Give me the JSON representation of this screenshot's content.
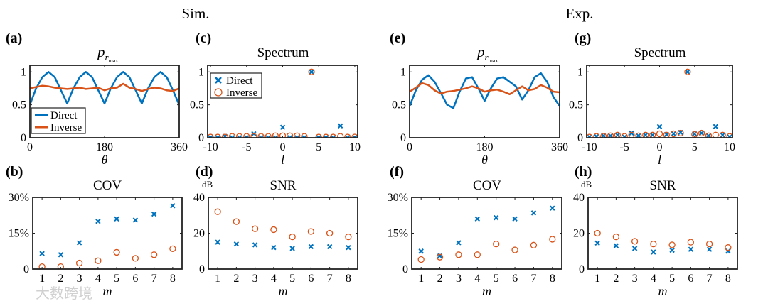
{
  "headers": {
    "sim": "Sim.",
    "exp": "Exp."
  },
  "watermark": "大数跨境",
  "colors": {
    "direct": "#0072BD",
    "inverse": "#D95319"
  },
  "chart_data": [
    {
      "id": "a",
      "type": "line",
      "panel_label": "(a)",
      "title": {
        "main": "p",
        "sub": "r",
        "subsub": "max"
      },
      "xlabel": "θ",
      "ylabel": "",
      "xlim": [
        0,
        360
      ],
      "ylim": [
        0,
        1.1
      ],
      "xticks": [
        0,
        180,
        360
      ],
      "xtick_labels": [
        "0",
        "180",
        "360"
      ],
      "yticks": [
        0,
        0.5,
        1
      ],
      "ytick_labels": [
        "0",
        "0.5",
        "1"
      ],
      "legend": {
        "placement": "bottom-left",
        "entries": [
          "Direct",
          "Inverse"
        ]
      },
      "x": [
        0,
        15,
        30,
        45,
        60,
        75,
        90,
        105,
        120,
        135,
        150,
        165,
        180,
        195,
        210,
        225,
        240,
        255,
        270,
        285,
        300,
        315,
        330,
        345,
        360
      ],
      "series": [
        {
          "name": "Direct",
          "values": [
            0.5,
            0.75,
            0.92,
            1.0,
            0.92,
            0.72,
            0.52,
            0.75,
            0.92,
            1.0,
            0.92,
            0.72,
            0.52,
            0.75,
            0.92,
            1.0,
            0.92,
            0.72,
            0.52,
            0.75,
            0.92,
            1.0,
            0.92,
            0.72,
            0.5
          ]
        },
        {
          "name": "Inverse",
          "values": [
            0.75,
            0.77,
            0.79,
            0.78,
            0.76,
            0.75,
            0.74,
            0.75,
            0.76,
            0.74,
            0.75,
            0.76,
            0.72,
            0.75,
            0.76,
            0.82,
            0.76,
            0.74,
            0.71,
            0.74,
            0.76,
            0.75,
            0.72,
            0.71,
            0.75
          ]
        }
      ]
    },
    {
      "id": "c",
      "type": "scatter",
      "panel_label": "(c)",
      "title": "Spectrum",
      "xlabel": "l",
      "ylabel": "",
      "xlim": [
        -10.4,
        10.4
      ],
      "ylim": [
        0,
        1.1
      ],
      "xticks": [
        -10,
        -5,
        0,
        5,
        10
      ],
      "xtick_labels": [
        "-10",
        "-5",
        "0",
        "5",
        "10"
      ],
      "yticks": [
        0,
        0.5,
        1
      ],
      "ytick_labels": [
        "0",
        "0.5",
        "1"
      ],
      "legend": {
        "placement": "top-left",
        "entries": [
          "Direct",
          "Inverse"
        ]
      },
      "x": [
        -10,
        -9,
        -8,
        -7,
        -6,
        -5,
        -4,
        -3,
        -2,
        -1,
        0,
        1,
        2,
        3,
        4,
        5,
        6,
        7,
        8,
        9,
        10
      ],
      "series": [
        {
          "name": "Direct",
          "marker": "x",
          "values": [
            0,
            0,
            0.02,
            0,
            0,
            0,
            0.06,
            0,
            0,
            0,
            0.16,
            0,
            0,
            0,
            1.0,
            0,
            0,
            0,
            0.18,
            0,
            0
          ]
        },
        {
          "name": "Inverse",
          "marker": "o",
          "values": [
            0.01,
            0.01,
            0.01,
            0.02,
            0.02,
            0.02,
            0.02,
            0.02,
            0.02,
            0.03,
            0.03,
            0.03,
            0.03,
            0.02,
            1.0,
            0.01,
            0.01,
            0.01,
            0.02,
            0.01,
            0.01
          ]
        }
      ]
    },
    {
      "id": "b",
      "type": "scatter",
      "panel_label": "(b)",
      "title": "COV",
      "xlabel": "m",
      "ylabel": "",
      "xlim": [
        0.5,
        8.5
      ],
      "ylim": [
        0,
        30
      ],
      "xticks": [
        1,
        2,
        3,
        4,
        5,
        6,
        7,
        8
      ],
      "xtick_labels": [
        "1",
        "2",
        "3",
        "4",
        "5",
        "6",
        "7",
        "8"
      ],
      "yticks": [
        0,
        15,
        30
      ],
      "ytick_labels": [
        "0",
        "15%",
        "30%"
      ],
      "x": [
        1,
        2,
        3,
        4,
        5,
        6,
        7,
        8
      ],
      "series": [
        {
          "name": "Direct",
          "marker": "x",
          "values": [
            6.5,
            6,
            11,
            20,
            21,
            20.5,
            23,
            26.5
          ]
        },
        {
          "name": "Inverse",
          "marker": "o",
          "values": [
            1,
            1,
            2.5,
            3.5,
            7,
            4.5,
            6,
            8.5
          ]
        }
      ]
    },
    {
      "id": "d",
      "type": "scatter",
      "panel_label": "(d)",
      "title": "SNR",
      "unit": "dB",
      "xlabel": "m",
      "ylabel": "dB",
      "xlim": [
        0.5,
        8.5
      ],
      "ylim": [
        0,
        40
      ],
      "xticks": [
        1,
        2,
        3,
        4,
        5,
        6,
        7,
        8
      ],
      "xtick_labels": [
        "1",
        "2",
        "3",
        "4",
        "5",
        "6",
        "7",
        "8"
      ],
      "yticks": [
        0,
        20,
        40
      ],
      "ytick_labels": [
        "0",
        "20",
        "40"
      ],
      "x": [
        1,
        2,
        3,
        4,
        5,
        6,
        7,
        8
      ],
      "series": [
        {
          "name": "Direct",
          "marker": "x",
          "values": [
            15,
            14,
            13.5,
            12,
            11.5,
            12.5,
            12.5,
            12
          ]
        },
        {
          "name": "Inverse",
          "marker": "o",
          "values": [
            32,
            26.5,
            22.5,
            22,
            18,
            21,
            20,
            18
          ]
        }
      ]
    },
    {
      "id": "e",
      "type": "line",
      "panel_label": "(e)",
      "title": {
        "main": "p",
        "sub": "r",
        "subsub": "max"
      },
      "xlabel": "θ",
      "ylabel": "",
      "xlim": [
        0,
        360
      ],
      "ylim": [
        0,
        1.1
      ],
      "xticks": [
        0,
        180,
        360
      ],
      "xtick_labels": [
        "0",
        "180",
        "360"
      ],
      "yticks": [
        0,
        0.5,
        1
      ],
      "ytick_labels": [
        "0",
        "0.5",
        "1"
      ],
      "x": [
        0,
        15,
        30,
        45,
        60,
        75,
        90,
        105,
        120,
        135,
        150,
        165,
        180,
        195,
        210,
        225,
        240,
        255,
        270,
        285,
        300,
        315,
        330,
        345,
        360
      ],
      "series": [
        {
          "name": "Direct",
          "values": [
            0.48,
            0.72,
            0.88,
            0.95,
            0.85,
            0.68,
            0.5,
            0.45,
            0.7,
            0.9,
            0.92,
            0.75,
            0.56,
            0.75,
            0.9,
            0.92,
            0.85,
            0.78,
            0.58,
            0.72,
            0.92,
            0.98,
            0.85,
            0.62,
            0.48
          ]
        },
        {
          "name": "Inverse",
          "values": [
            0.7,
            0.76,
            0.83,
            0.8,
            0.72,
            0.67,
            0.7,
            0.71,
            0.73,
            0.75,
            0.78,
            0.75,
            0.7,
            0.72,
            0.73,
            0.7,
            0.66,
            0.72,
            0.78,
            0.72,
            0.74,
            0.8,
            0.76,
            0.7,
            0.69
          ]
        }
      ]
    },
    {
      "id": "g",
      "type": "scatter",
      "panel_label": "(g)",
      "title": "Spectrum",
      "xlabel": "l",
      "ylabel": "",
      "xlim": [
        -10.4,
        10.4
      ],
      "ylim": [
        0,
        1.1
      ],
      "xticks": [
        -10,
        -5,
        0,
        5,
        10
      ],
      "xtick_labels": [
        "-10",
        "-5",
        "0",
        "5",
        "10"
      ],
      "yticks": [
        0,
        0.5,
        1
      ],
      "ytick_labels": [
        "0",
        "0.5",
        "1"
      ],
      "x": [
        -10,
        -9,
        -8,
        -7,
        -6,
        -5,
        -4,
        -3,
        -2,
        -1,
        0,
        1,
        2,
        3,
        4,
        5,
        6,
        7,
        8,
        9,
        10
      ],
      "series": [
        {
          "name": "Direct",
          "marker": "x",
          "values": [
            0.01,
            0.02,
            0.03,
            0.03,
            0.04,
            0.01,
            0.07,
            0.03,
            0.04,
            0.04,
            0.17,
            0.05,
            0.06,
            0.08,
            1.0,
            0.06,
            0.07,
            0.03,
            0.17,
            0.04,
            0.01
          ]
        },
        {
          "name": "Inverse",
          "marker": "o",
          "values": [
            0.01,
            0.02,
            0.02,
            0.03,
            0.04,
            0.02,
            0.04,
            0.03,
            0.04,
            0.04,
            0.06,
            0.04,
            0.06,
            0.07,
            1.0,
            0.05,
            0.07,
            0.03,
            0.04,
            0.04,
            0.02
          ]
        }
      ]
    },
    {
      "id": "f",
      "type": "scatter",
      "panel_label": "(f)",
      "title": "COV",
      "xlabel": "m",
      "ylabel": "",
      "xlim": [
        0.5,
        8.5
      ],
      "ylim": [
        0,
        30
      ],
      "xticks": [
        1,
        2,
        3,
        4,
        5,
        6,
        7,
        8
      ],
      "xtick_labels": [
        "1",
        "2",
        "3",
        "4",
        "5",
        "6",
        "7",
        "8"
      ],
      "yticks": [
        0,
        15,
        30
      ],
      "ytick_labels": [
        "0",
        "15%",
        "30%"
      ],
      "x": [
        1,
        2,
        3,
        4,
        5,
        6,
        7,
        8
      ],
      "series": [
        {
          "name": "Direct",
          "marker": "x",
          "values": [
            7.5,
            5.5,
            11,
            21,
            21.5,
            21,
            23.5,
            25.5
          ]
        },
        {
          "name": "Inverse",
          "marker": "o",
          "values": [
            4,
            5,
            6,
            6,
            10.5,
            8,
            10,
            12.5
          ]
        }
      ]
    },
    {
      "id": "h",
      "type": "scatter",
      "panel_label": "(h)",
      "title": "SNR",
      "unit": "dB",
      "xlabel": "m",
      "ylabel": "dB",
      "xlim": [
        0.5,
        8.5
      ],
      "ylim": [
        0,
        40
      ],
      "xticks": [
        1,
        2,
        3,
        4,
        5,
        6,
        7,
        8
      ],
      "xtick_labels": [
        "1",
        "2",
        "3",
        "4",
        "5",
        "6",
        "7",
        "8"
      ],
      "yticks": [
        0,
        20,
        40
      ],
      "ytick_labels": [
        "0",
        "20",
        "40"
      ],
      "x": [
        1,
        2,
        3,
        4,
        5,
        6,
        7,
        8
      ],
      "series": [
        {
          "name": "Direct",
          "marker": "x",
          "values": [
            14.5,
            13,
            11.5,
            9.5,
            10.5,
            11,
            11,
            10
          ]
        },
        {
          "name": "Inverse",
          "marker": "o",
          "values": [
            20,
            18,
            15.5,
            14,
            13.5,
            15,
            14,
            12
          ]
        }
      ]
    }
  ]
}
